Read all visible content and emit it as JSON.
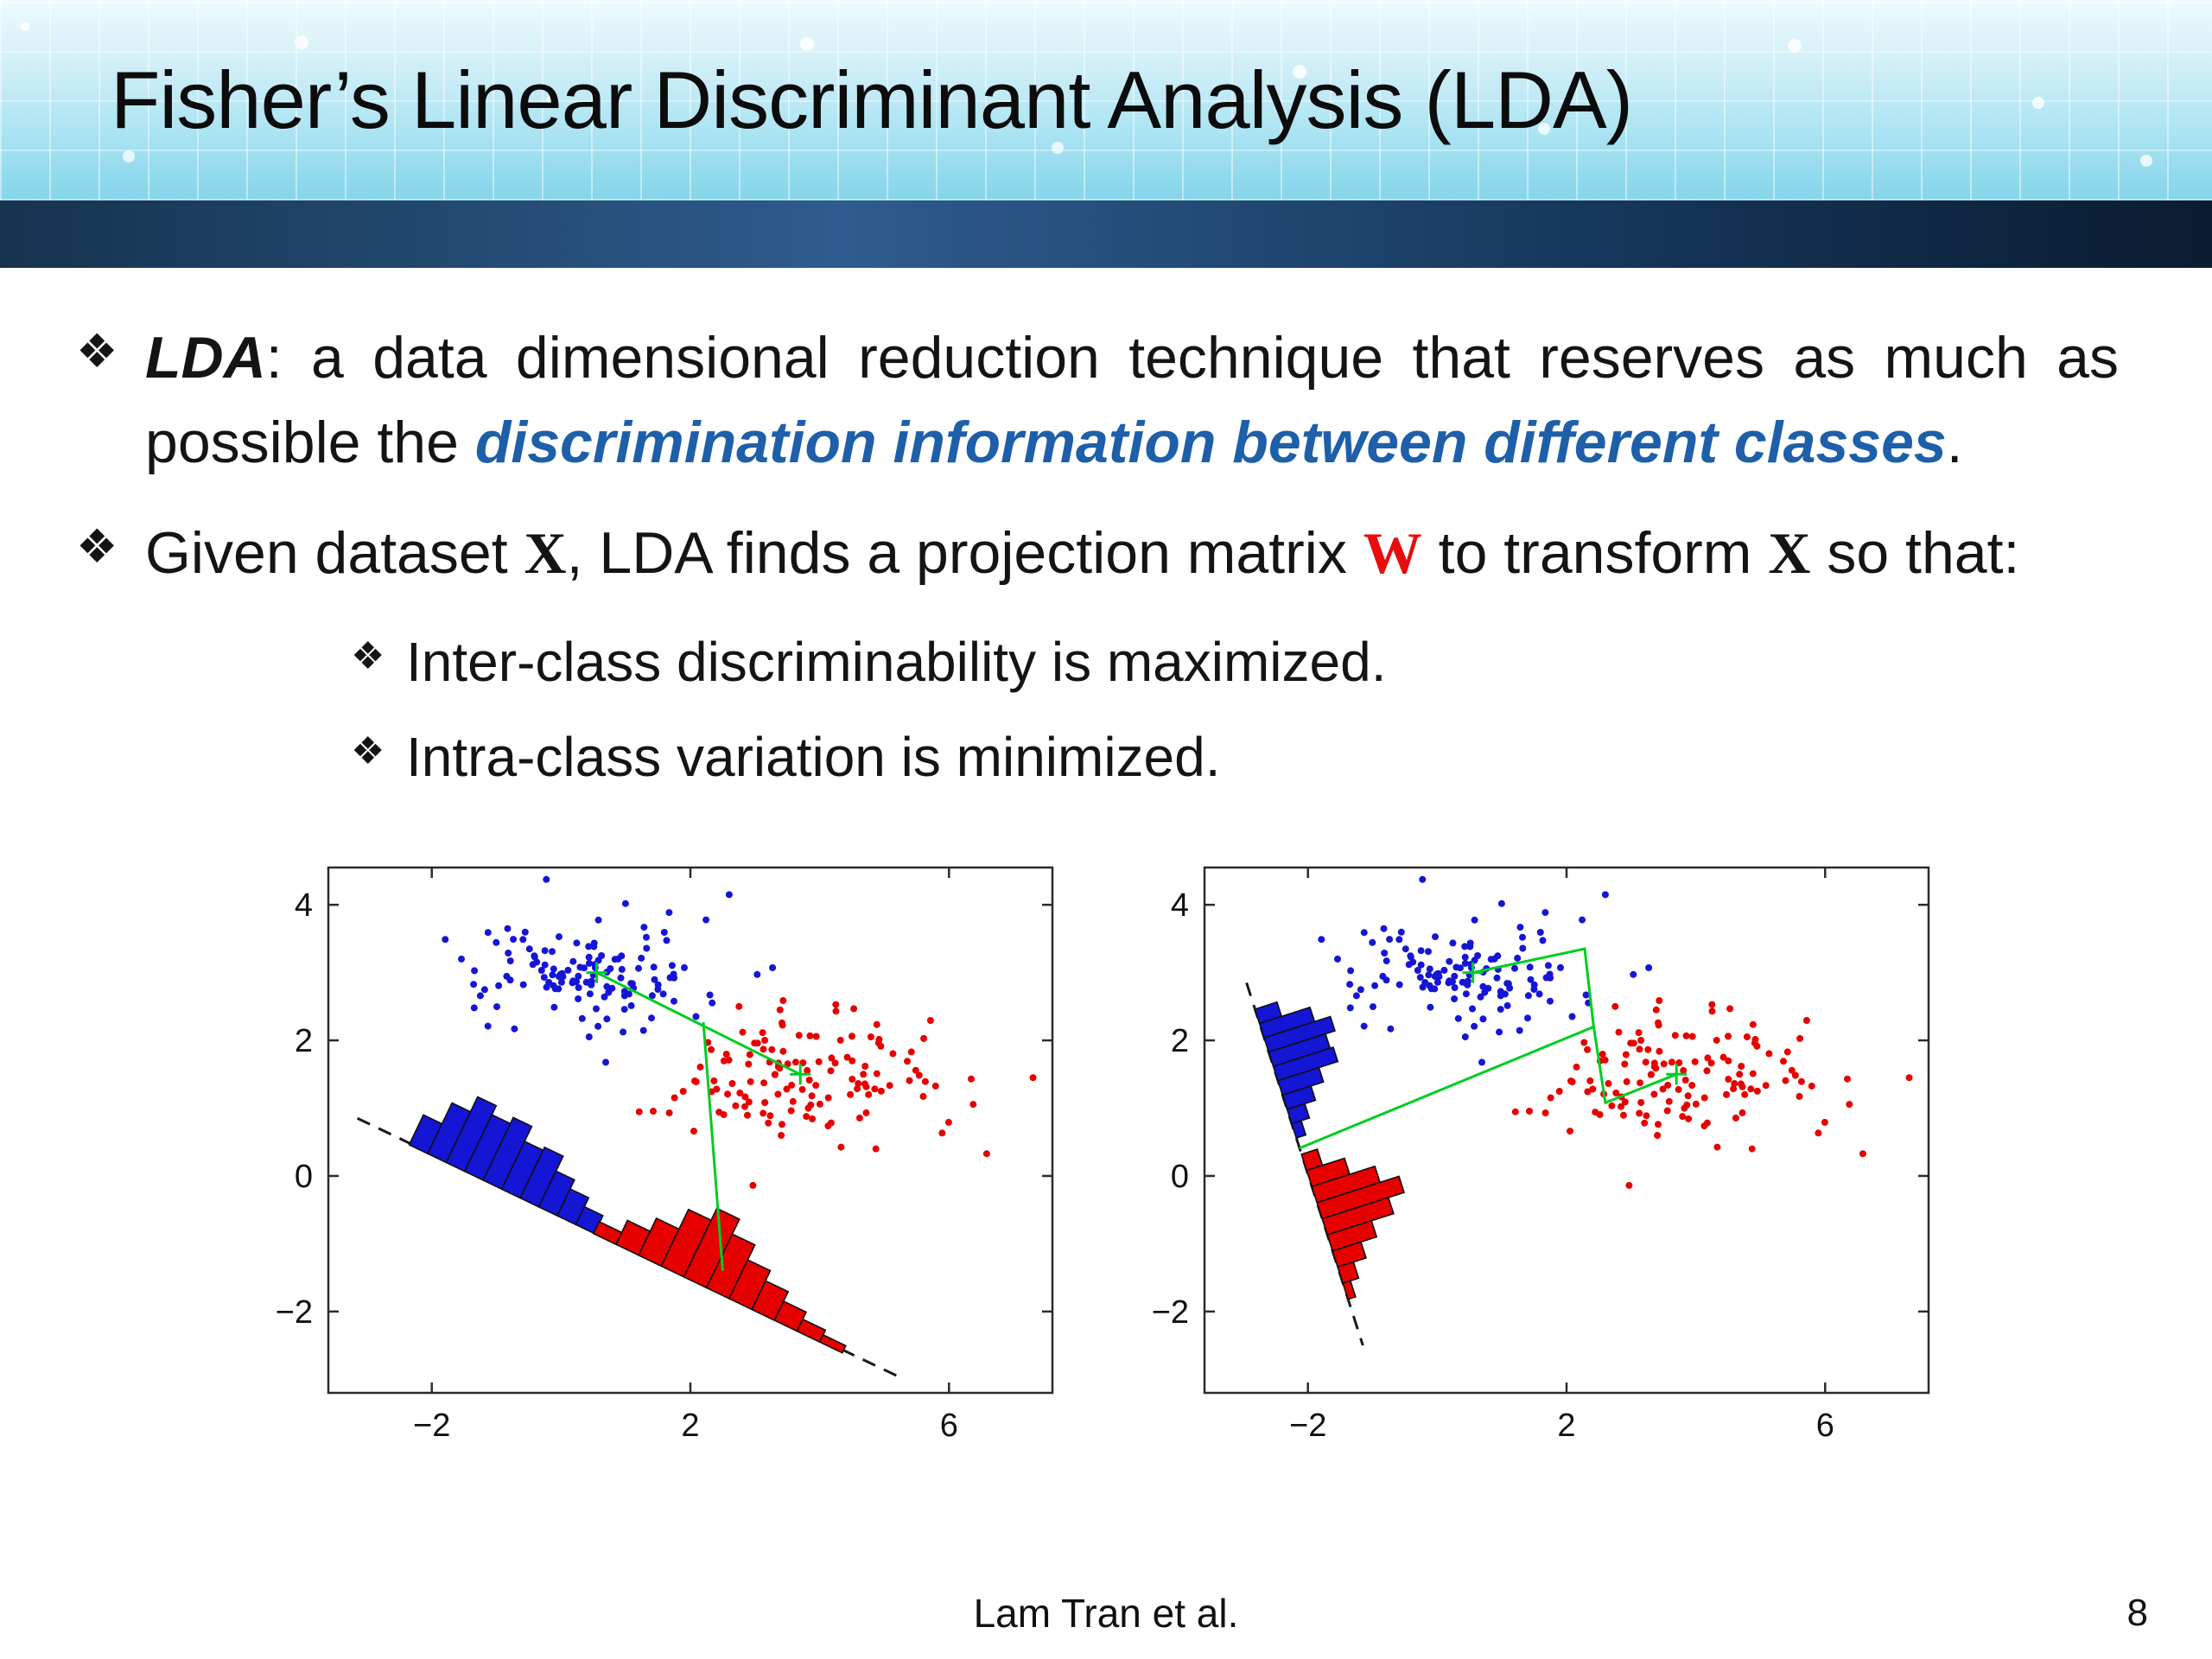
{
  "slide": {
    "title": "Fisher’s Linear Discriminant Analysis (LDA)",
    "footer_citation": "Lam Tran et al.",
    "page_number": "8"
  },
  "bullets": {
    "marker": "❖",
    "b1": {
      "term": "LDA",
      "sep": ": ",
      "lead": "a data dimensional reduction technique that reserves as much as possible the ",
      "emphasis": "discrimination information between different classes",
      "tail": "."
    },
    "b2": {
      "pre": "Given dataset ",
      "x1": "X",
      "mid1": ", LDA finds a projection matrix ",
      "w": "W",
      "mid2": " to transform ",
      "x2": "X",
      "tail": " so that:"
    },
    "sub1": "Inter-class discriminability is maximized.",
    "sub2": "Intra-class variation is minimized."
  },
  "colors": {
    "emphasis_blue": "#1e5fa9",
    "matrix_red": "#e80c0c",
    "class1_blue": "#1515d6",
    "class2_red": "#e60000",
    "mean_line_green": "#00cc22"
  },
  "chart_data": [
    {
      "type": "scatter",
      "title": "",
      "xlabel": "",
      "ylabel": "",
      "xlim": [
        -3.6,
        7.6
      ],
      "ylim": [
        -3.2,
        4.55
      ],
      "xticks": [
        -2,
        2,
        6
      ],
      "yticks": [
        -2,
        0,
        2,
        4
      ],
      "grid": false,
      "clusters": [
        {
          "name": "class-1-blue",
          "color": "#1515d6",
          "center": [
            0.55,
            3.0
          ],
          "spread": [
            0.9,
            0.42
          ],
          "n": 130,
          "seed": 7,
          "extra_points": [
            [
              2.6,
              4.15
            ]
          ]
        },
        {
          "name": "class-2-red",
          "color": "#e60000",
          "center": [
            3.7,
            1.5
          ],
          "spread": [
            1.1,
            0.5
          ],
          "n": 130,
          "seed": 42,
          "extra_points": [
            [
              7.3,
              1.45
            ]
          ]
        }
      ],
      "projection_line": {
        "from": [
          -3.15,
          0.85
        ],
        "to": [
          5.2,
          -2.95
        ],
        "dash": true
      },
      "histograms": [
        {
          "class": "class-1-blue",
          "color": "#1515d6",
          "from": [
            -2.35,
            0.46
          ],
          "to": [
            0.8,
            -0.98
          ],
          "heights": [
            0.5,
            0.85,
            1.1,
            0.95,
            1.05,
            0.8,
            0.85,
            0.6,
            0.45,
            0.3,
            0.18
          ]
        },
        {
          "class": "class-2-red",
          "color": "#e60000",
          "from": [
            0.5,
            -0.85
          ],
          "to": [
            4.35,
            -2.61
          ],
          "heights": [
            0.2,
            0.4,
            0.62,
            0.95,
            1.15,
            0.9,
            0.65,
            0.48,
            0.32,
            0.2,
            0.12
          ]
        }
      ],
      "mean_lines": [
        [
          [
            0.55,
            3.0
          ],
          [
            3.7,
            1.5
          ]
        ],
        [
          [
            2.2,
            2.27
          ],
          [
            2.5,
            -1.4
          ]
        ]
      ],
      "mean_markers": [
        [
          0.55,
          3.0
        ],
        [
          3.7,
          1.5
        ]
      ],
      "mean_line_color": "#00cc22"
    },
    {
      "type": "scatter",
      "title": "",
      "xlabel": "",
      "ylabel": "",
      "xlim": [
        -3.6,
        7.6
      ],
      "ylim": [
        -3.2,
        4.55
      ],
      "xticks": [
        -2,
        2,
        6
      ],
      "yticks": [
        -2,
        0,
        2,
        4
      ],
      "grid": false,
      "clusters": [
        {
          "name": "class-1-blue",
          "color": "#1515d6",
          "center": [
            0.55,
            3.0
          ],
          "spread": [
            0.9,
            0.42
          ],
          "n": 130,
          "seed": 7,
          "extra_points": [
            [
              2.6,
              4.15
            ]
          ]
        },
        {
          "name": "class-2-red",
          "color": "#e60000",
          "center": [
            3.7,
            1.5
          ],
          "spread": [
            1.1,
            0.5
          ],
          "n": 130,
          "seed": 42,
          "extra_points": [
            [
              7.3,
              1.45
            ]
          ]
        }
      ],
      "projection_line": {
        "from": [
          -2.95,
          2.85
        ],
        "to": [
          -1.15,
          -2.5
        ],
        "dash": true
      },
      "histograms": [
        {
          "class": "class-1-blue",
          "color": "#1515d6",
          "from": [
            -2.82,
            2.46
          ],
          "to": [
            -2.18,
            0.56
          ],
          "heights": [
            0.35,
            0.8,
            1.05,
            0.9,
            0.95,
            0.65,
            0.45,
            0.28,
            0.15
          ]
        },
        {
          "class": "class-2-red",
          "color": "#e60000",
          "from": [
            -2.1,
            0.32
          ],
          "to": [
            -1.38,
            -1.82
          ],
          "heights": [
            0.25,
            0.6,
            1.0,
            1.3,
            1.05,
            0.7,
            0.45,
            0.25,
            0.12
          ]
        }
      ],
      "mean_lines": [
        [
          [
            -2.13,
            0.41
          ],
          [
            2.42,
            2.2
          ]
        ],
        [
          [
            0.55,
            3.0
          ],
          [
            2.28,
            3.35
          ],
          [
            2.42,
            2.2
          ]
        ],
        [
          [
            2.42,
            2.2
          ],
          [
            2.6,
            1.08
          ],
          [
            3.7,
            1.5
          ]
        ]
      ],
      "mean_markers": [
        [
          0.55,
          3.0
        ],
        [
          3.7,
          1.5
        ]
      ],
      "mean_line_color": "#00cc22"
    }
  ]
}
